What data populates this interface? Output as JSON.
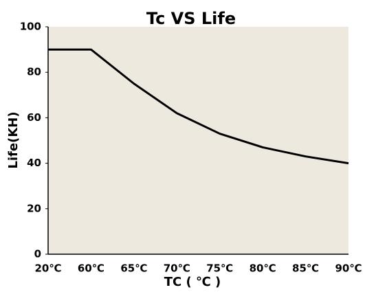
{
  "chart_data": {
    "type": "line",
    "title": "Tc VS Life",
    "x_label": "TC ( ℃ )",
    "y_label": "Life(KH)",
    "categories": [
      "20℃",
      "60℃",
      "65℃",
      "70℃",
      "75℃",
      "80℃",
      "85℃",
      "90℃"
    ],
    "values": [
      90,
      90,
      75,
      62,
      53,
      47,
      43,
      40
    ],
    "color": "#000000",
    "ylim": [
      0,
      100
    ],
    "yticks": [
      0,
      20,
      40,
      60,
      80,
      100
    ],
    "grid": false
  }
}
